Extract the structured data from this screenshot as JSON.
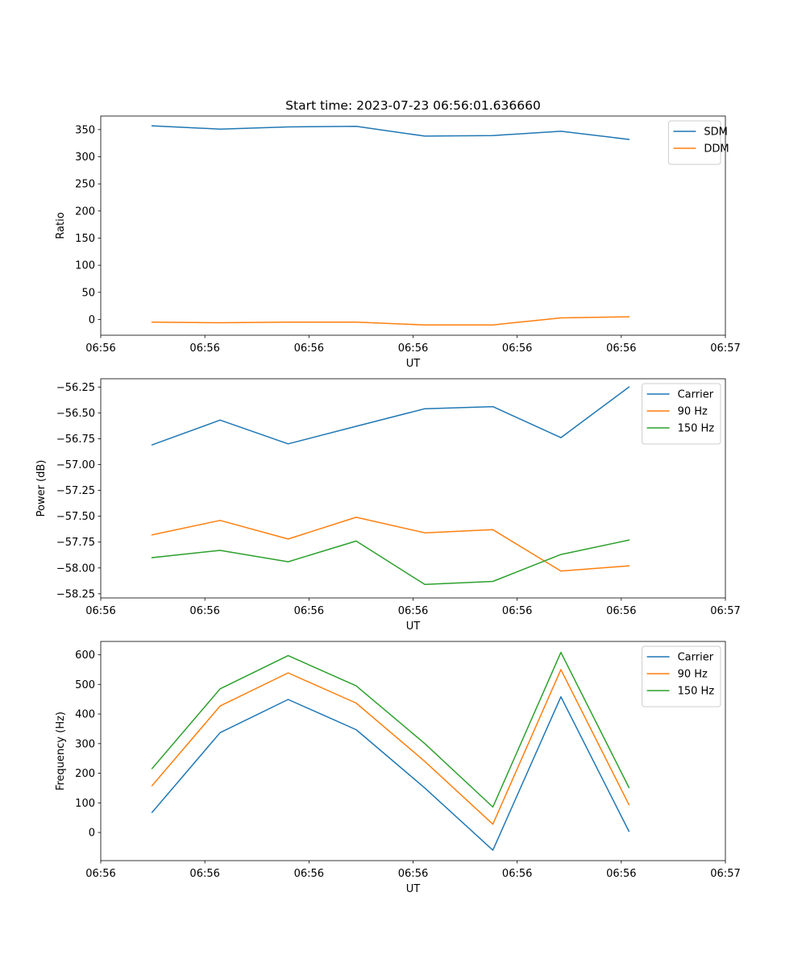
{
  "chart_data": [
    {
      "type": "line",
      "title": "Start time: 2023-07-23 06:56:01.636660",
      "xlabel": "UT",
      "ylabel": "Ratio",
      "xlim": [
        0,
        9
      ],
      "ylim": [
        -29,
        375
      ],
      "yticks": [
        0,
        50,
        100,
        150,
        200,
        250,
        300,
        350
      ],
      "ytick_labels": [
        "0",
        "50",
        "100",
        "150",
        "200",
        "250",
        "300",
        "350"
      ],
      "xticks": [
        0,
        1.5,
        3,
        4.5,
        6,
        7.5,
        9
      ],
      "xtick_labels": [
        "06:56",
        "06:56",
        "06:56",
        "06:56",
        "06:56",
        "06:56",
        "06:57"
      ],
      "x": [
        0.74,
        1.72,
        2.7,
        3.68,
        4.67,
        5.65,
        6.63,
        7.61
      ],
      "legend_position": "top-right",
      "grid": false,
      "series": [
        {
          "name": "SDM",
          "color": "#1f77b4",
          "values": [
            357,
            351,
            355,
            356,
            338,
            339,
            347,
            332
          ]
        },
        {
          "name": "DDM",
          "color": "#ff7f0e",
          "values": [
            -5,
            -6,
            -5,
            -5,
            -10,
            -10,
            3,
            5
          ]
        }
      ]
    },
    {
      "type": "line",
      "title": "",
      "xlabel": "UT",
      "ylabel": "Power (dB)",
      "xlim": [
        0,
        9
      ],
      "ylim": [
        -58.29,
        -56.17
      ],
      "yticks": [
        -58.25,
        -58.0,
        -57.75,
        -57.5,
        -57.25,
        -57.0,
        -56.75,
        -56.5,
        -56.25
      ],
      "ytick_labels": [
        "−58.25",
        "−58.00",
        "−57.75",
        "−57.50",
        "−57.25",
        "−57.00",
        "−56.75",
        "−56.50",
        "−56.25"
      ],
      "xticks": [
        0,
        1.5,
        3,
        4.5,
        6,
        7.5,
        9
      ],
      "xtick_labels": [
        "06:56",
        "06:56",
        "06:56",
        "06:56",
        "06:56",
        "06:56",
        "06:57"
      ],
      "x": [
        0.74,
        1.72,
        2.7,
        3.68,
        4.67,
        5.65,
        6.63,
        7.61
      ],
      "legend_position": "top-right",
      "grid": false,
      "series": [
        {
          "name": "Carrier",
          "color": "#1f77b4",
          "values": [
            -56.81,
            -56.57,
            -56.8,
            -56.63,
            -56.46,
            -56.44,
            -56.74,
            -56.25
          ]
        },
        {
          "name": "90 Hz",
          "color": "#ff7f0e",
          "values": [
            -57.68,
            -57.54,
            -57.72,
            -57.51,
            -57.66,
            -57.63,
            -58.03,
            -57.98
          ]
        },
        {
          "name": "150 Hz",
          "color": "#2ca02c",
          "values": [
            -57.9,
            -57.83,
            -57.94,
            -57.74,
            -58.16,
            -58.13,
            -57.87,
            -57.73
          ]
        }
      ]
    },
    {
      "type": "line",
      "title": "",
      "xlabel": "UT",
      "ylabel": "Frequency (Hz)",
      "xlim": [
        0,
        9
      ],
      "ylim": [
        -95,
        645
      ],
      "yticks": [
        0,
        100,
        200,
        300,
        400,
        500,
        600
      ],
      "ytick_labels": [
        "0",
        "100",
        "200",
        "300",
        "400",
        "500",
        "600"
      ],
      "xticks": [
        0,
        1.5,
        3,
        4.5,
        6,
        7.5,
        9
      ],
      "xtick_labels": [
        "06:56",
        "06:56",
        "06:56",
        "06:56",
        "06:56",
        "06:56",
        "06:57"
      ],
      "x": [
        0.74,
        1.72,
        2.7,
        3.68,
        4.67,
        5.65,
        6.63,
        7.61
      ],
      "legend_position": "top-right",
      "grid": false,
      "series": [
        {
          "name": "Carrier",
          "color": "#1f77b4",
          "values": [
            68,
            337,
            449,
            347,
            150,
            -60,
            458,
            4
          ]
        },
        {
          "name": "90 Hz",
          "color": "#ff7f0e",
          "values": [
            158,
            427,
            539,
            437,
            240,
            28,
            550,
            94
          ]
        },
        {
          "name": "150 Hz",
          "color": "#2ca02c",
          "values": [
            216,
            485,
            597,
            495,
            300,
            86,
            608,
            152
          ]
        }
      ]
    }
  ]
}
